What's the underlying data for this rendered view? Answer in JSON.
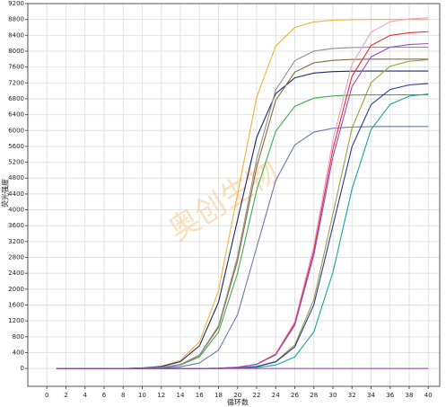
{
  "chart_data": {
    "type": "line",
    "x_label": "循环数",
    "y_label": "荧光强度",
    "watermark": "奥创生物",
    "x": [
      1,
      2,
      4,
      6,
      8,
      10,
      12,
      14,
      16,
      18,
      20,
      22,
      24,
      26,
      28,
      30,
      32,
      34,
      36,
      38,
      40
    ],
    "xlim": [
      -2,
      41.2
    ],
    "ylim": [
      -450,
      9200
    ],
    "xticks": [
      0,
      2,
      4,
      6,
      8,
      10,
      12,
      14,
      16,
      18,
      20,
      22,
      24,
      26,
      28,
      30,
      32,
      34,
      36,
      38,
      40
    ],
    "yticks": [
      0,
      400,
      800,
      1200,
      1600,
      2000,
      2400,
      2800,
      3200,
      3600,
      4000,
      4400,
      4800,
      5200,
      5600,
      6000,
      6400,
      6800,
      7200,
      7600,
      8000,
      8400,
      8800,
      9200
    ],
    "grid": true,
    "series": [
      {
        "color": "#f2b13c",
        "values": [
          0,
          0,
          0,
          0,
          0,
          17,
          59,
          202,
          669,
          1962,
          4400,
          6838,
          8131,
          8598,
          8738,
          8782,
          8796,
          8800,
          8800,
          8800,
          8800
        ]
      },
      {
        "color": "#1f2a6b",
        "values": [
          0,
          0,
          0,
          0,
          0,
          14,
          50,
          173,
          570,
          1673,
          3750,
          5828,
          6930,
          7328,
          7448,
          7485,
          7496,
          7500,
          7500,
          7500,
          7500
        ]
      },
      {
        "color": "#3fae4a",
        "values": [
          0,
          0,
          0,
          0,
          0,
          7,
          25,
          86,
          290,
          918,
          2408,
          4492,
          5982,
          6610,
          6817,
          6872,
          6893,
          6900,
          6900,
          6900,
          6900
        ]
      },
      {
        "color": "#8a6a3c",
        "values": [
          0,
          0,
          0,
          0,
          0,
          8,
          28,
          97,
          328,
          1037,
          2722,
          5078,
          6763,
          7472,
          7706,
          7769,
          7792,
          7800,
          7800,
          7800,
          7800
        ]
      },
      {
        "color": "#6a7aa8",
        "values": [
          0,
          0,
          0,
          0,
          0,
          4,
          12,
          41,
          140,
          464,
          1360,
          3050,
          4740,
          5636,
          5960,
          6057,
          6088,
          6097,
          6100,
          6100,
          6100
        ]
      },
      {
        "color": "#909090",
        "values": [
          0,
          0,
          0,
          0,
          0,
          8,
          29,
          100,
          340,
          1077,
          2827,
          5273,
          7023,
          7760,
          8003,
          8068,
          8092,
          8100,
          8100,
          8100,
          8100
        ]
      },
      {
        "color": "#e8a0c8",
        "values": [
          0,
          0,
          0,
          0,
          0,
          0,
          0,
          0,
          0,
          9,
          32,
          110,
          372,
          1177,
          3089,
          5761,
          7673,
          8478,
          8744,
          8815,
          8841
        ]
      },
      {
        "color": "#e03030",
        "values": [
          0,
          0,
          0,
          0,
          0,
          0,
          0,
          0,
          0,
          9,
          31,
          105,
          357,
          1131,
          2967,
          5534,
          7370,
          8143,
          8398,
          8466,
          8492
        ]
      },
      {
        "color": "#9a4fc0",
        "values": [
          0,
          0,
          0,
          0,
          0,
          0,
          0,
          0,
          0,
          8,
          30,
          102,
          344,
          1091,
          2862,
          5338,
          7109,
          7856,
          8102,
          8167,
          8192
        ]
      },
      {
        "color": "#9aa040",
        "values": [
          0,
          0,
          0,
          0,
          0,
          0,
          0,
          0,
          0,
          0,
          15,
          52,
          179,
          593,
          1739,
          3900,
          6061,
          7207,
          7621,
          7745,
          7784
        ]
      },
      {
        "color": "#2a3a9a",
        "values": [
          0,
          0,
          0,
          0,
          0,
          0,
          0,
          0,
          0,
          0,
          14,
          48,
          166,
          547,
          1606,
          3600,
          5594,
          6653,
          7034,
          7150,
          7186
        ]
      },
      {
        "color": "#1aa59a",
        "values": [
          0,
          0,
          0,
          0,
          0,
          0,
          0,
          0,
          0,
          0,
          7,
          25,
          86,
          292,
          924,
          2426,
          4524,
          6026,
          6658,
          6867,
          6922
        ]
      },
      {
        "color": "#8a3aa8",
        "values": [
          0,
          0,
          0,
          0,
          0,
          0,
          0,
          0,
          0,
          0,
          0,
          0,
          0,
          0,
          0,
          0,
          0,
          0,
          0,
          0,
          0
        ]
      }
    ]
  }
}
